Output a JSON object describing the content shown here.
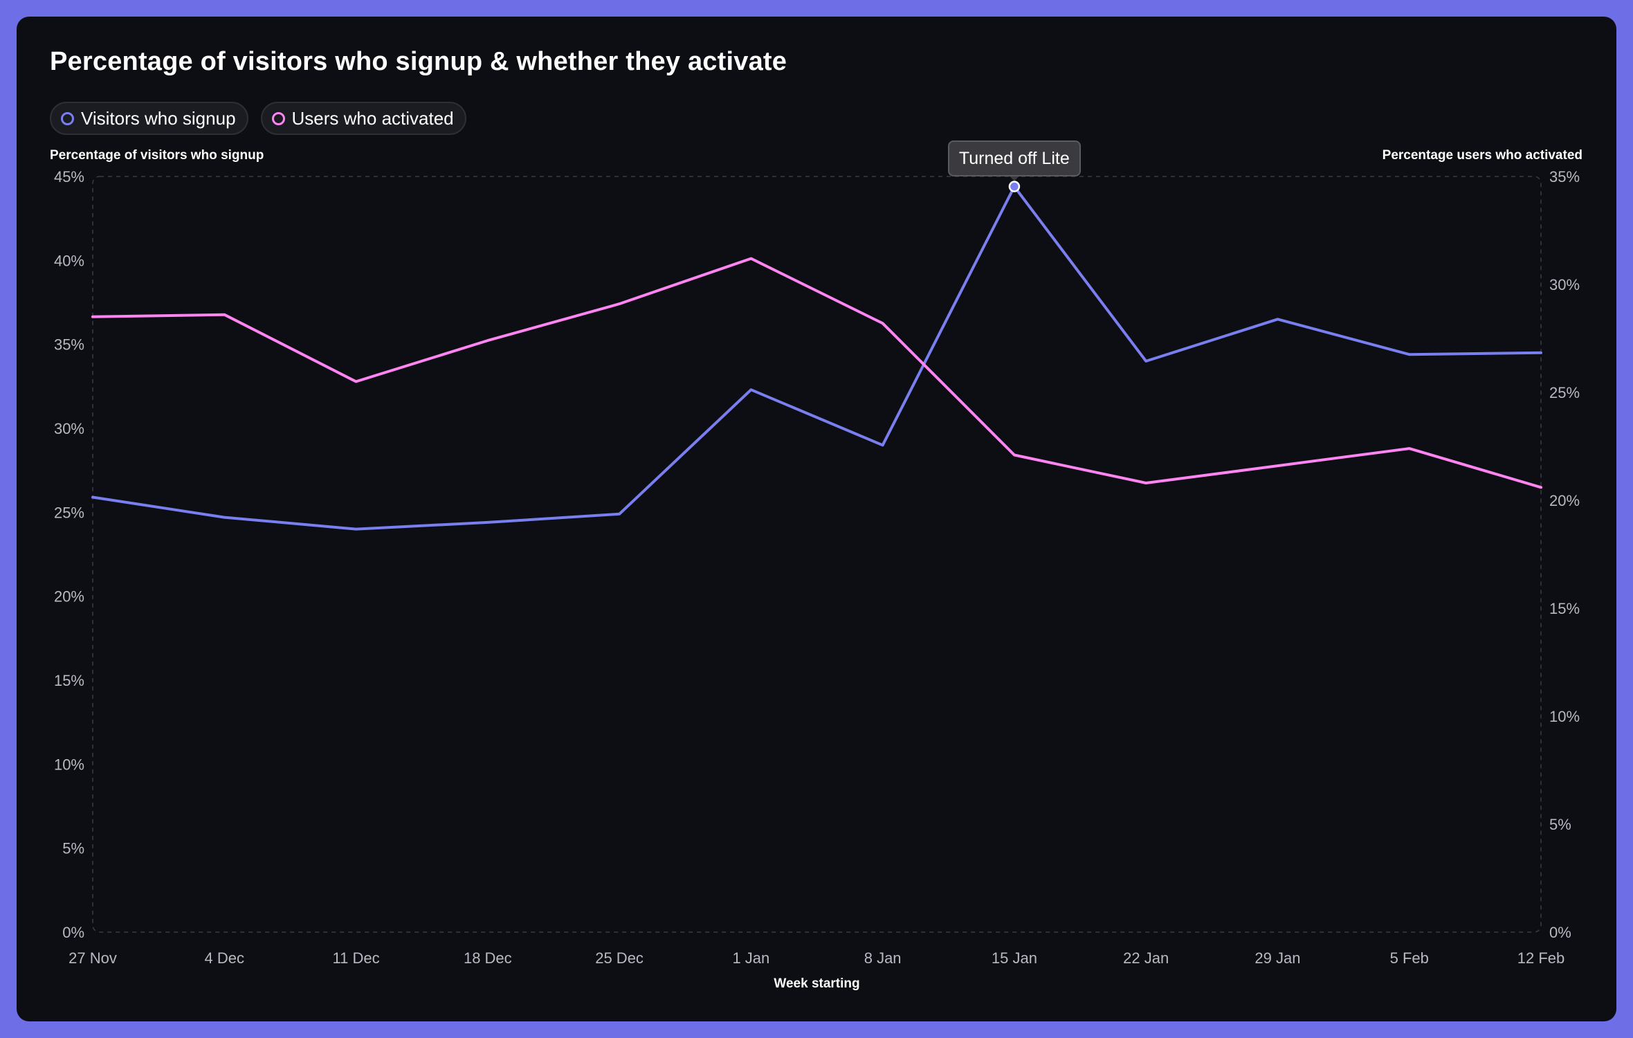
{
  "title": "Percentage of visitors who signup & whether they activate",
  "legend": [
    {
      "label": "Visitors who signup",
      "color": "#7a7ff0"
    },
    {
      "label": "Users who activated",
      "color": "#ff85f3"
    }
  ],
  "tooltip": "Turned off Lite",
  "colors": {
    "frame": "#6e6ee6",
    "background": "#0d0e13",
    "grid": "#3a3b44",
    "signup": "#7a7ff0",
    "activated": "#ff85f3"
  },
  "chart_data": {
    "type": "line",
    "title": "Percentage of visitors who signup & whether they activate",
    "xlabel": "Week starting",
    "ylabel_left": "Percentage of visitors who signup",
    "ylabel_right": "Percentage users who activated",
    "categories": [
      "27 Nov",
      "4 Dec",
      "11 Dec",
      "18 Dec",
      "25 Dec",
      "1 Jan",
      "8 Jan",
      "15 Jan",
      "22 Jan",
      "29 Jan",
      "5 Feb",
      "12 Feb"
    ],
    "ylim_left": [
      0,
      45
    ],
    "ylim_right": [
      0,
      35
    ],
    "yticks_left": [
      "0%",
      "5%",
      "10%",
      "15%",
      "20%",
      "25%",
      "30%",
      "35%",
      "40%",
      "45%"
    ],
    "yticks_right": [
      "0%",
      "5%",
      "10%",
      "15%",
      "20%",
      "25%",
      "30%",
      "35%"
    ],
    "series": [
      {
        "name": "Visitors who signup",
        "axis": "left",
        "values": [
          25.9,
          24.7,
          24.0,
          24.4,
          24.9,
          32.3,
          29.0,
          44.4,
          34.0,
          36.5,
          34.4,
          34.5
        ]
      },
      {
        "name": "Users who activated",
        "axis": "right",
        "values": [
          28.5,
          28.6,
          25.5,
          27.4,
          29.1,
          31.2,
          28.2,
          22.1,
          20.8,
          21.6,
          22.4,
          20.6
        ]
      }
    ],
    "annotations": [
      {
        "category": "15 Jan",
        "series": "Visitors who signup",
        "text": "Turned off Lite"
      }
    ],
    "grid": false,
    "legend_position": "top-left"
  }
}
